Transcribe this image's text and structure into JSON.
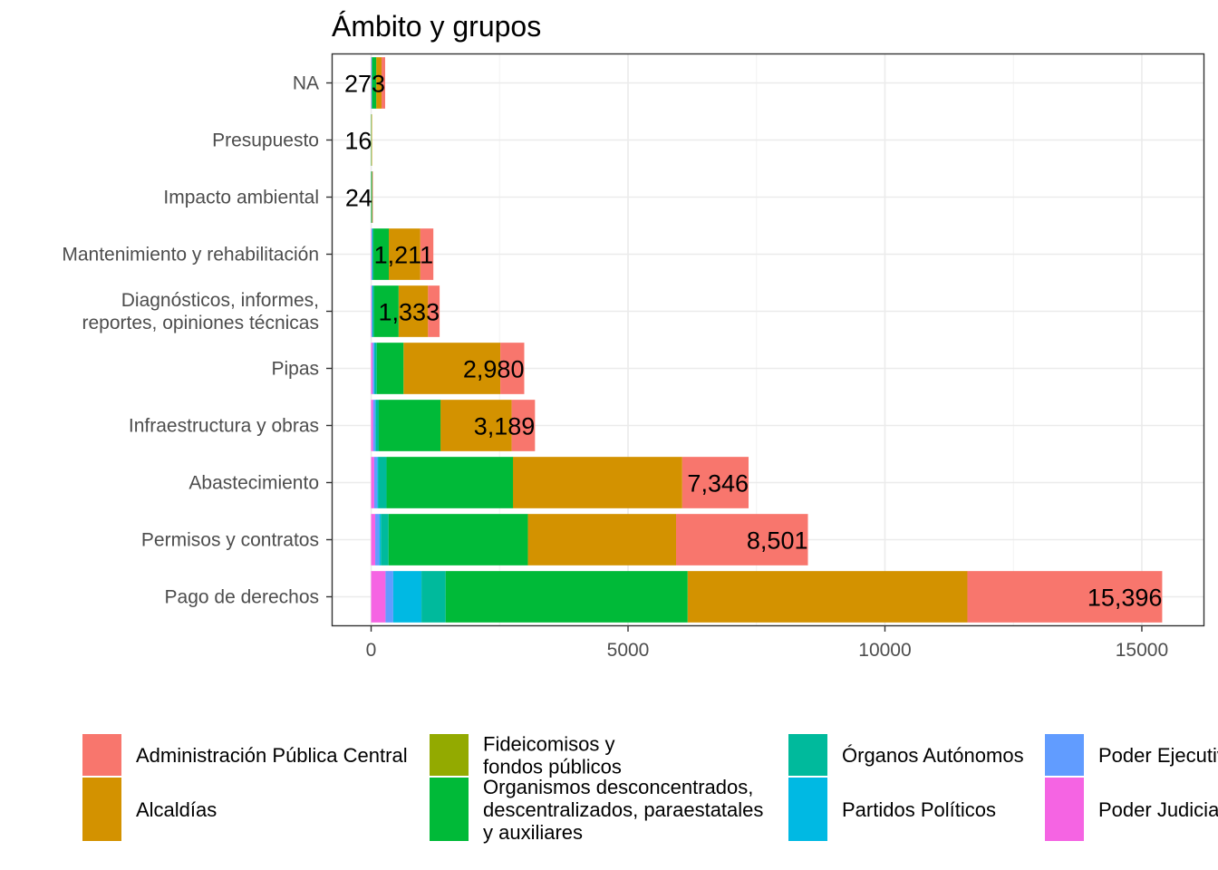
{
  "chart_data": {
    "type": "bar",
    "orientation": "horizontal",
    "stacked": true,
    "title": "Ámbito y grupos",
    "xlabel": "",
    "ylabel": "",
    "xlim": [
      -750,
      16200
    ],
    "xticks": [
      0,
      5000,
      10000,
      15000
    ],
    "grid": true,
    "legend_position": "bottom",
    "categories": [
      "Pago de derechos",
      "Permisos y contratos",
      "Abastecimiento",
      "Infraestructura y obras",
      "Pipas",
      "Diagnósticos, informes,\nreportes, opiniones técnicas",
      "Mantenimiento y rehabilitación",
      "Impacto ambiental",
      "Presupuesto",
      "NA"
    ],
    "totals": [
      15396,
      8501,
      7346,
      3189,
      2980,
      1333,
      1211,
      24,
      16,
      273
    ],
    "total_labels": [
      "15,396",
      "8,501",
      "7,346",
      "3,189",
      "2,980",
      "1,333",
      "1,211",
      "24",
      "16",
      "273"
    ],
    "series": [
      {
        "name": "Poder Judicial",
        "color": "#F564E3",
        "values": [
          280,
          80,
          60,
          40,
          30,
          10,
          10,
          0,
          0,
          5
        ]
      },
      {
        "name": "Poder Ejecutivo",
        "color": "#619CFF",
        "values": [
          150,
          80,
          60,
          40,
          30,
          15,
          10,
          0,
          0,
          5
        ]
      },
      {
        "name": "Partidos Políticos",
        "color": "#00B9E3",
        "values": [
          550,
          30,
          20,
          10,
          10,
          5,
          5,
          0,
          0,
          0
        ]
      },
      {
        "name": "Órganos Autónomos",
        "color": "#00BA9C",
        "values": [
          470,
          150,
          160,
          60,
          40,
          25,
          20,
          2,
          1,
          10
        ]
      },
      {
        "name": "Organismos desconcentrados, descentralizados, paraestatales y auxiliares",
        "color": "#00BA38",
        "values": [
          4710,
          2710,
          2460,
          1200,
          520,
          480,
          300,
          18,
          5,
          80
        ]
      },
      {
        "name": "Fideicomisos y fondos públicos",
        "color": "#93AA00",
        "values": [
          5,
          5,
          5,
          5,
          5,
          3,
          3,
          0,
          0,
          3
        ]
      },
      {
        "name": "Alcaldías",
        "color": "#D39200",
        "values": [
          5440,
          2880,
          3290,
          1380,
          1880,
          570,
          610,
          2,
          10,
          100
        ]
      },
      {
        "name": "Administración Pública Central",
        "color": "#F8766D",
        "values": [
          3791,
          2566,
          1291,
          454,
          465,
          225,
          253,
          2,
          0,
          70
        ]
      }
    ]
  },
  "legend": {
    "items": [
      {
        "label": "Administración Pública Central",
        "color": "#F8766D"
      },
      {
        "label": "Alcaldías",
        "color": "#D39200"
      },
      {
        "label": "Fideicomisos y\nfondos públicos",
        "color": "#93AA00"
      },
      {
        "label": "Organismos desconcentrados,\ndescentralizados, paraestatales\ny auxiliares",
        "color": "#00BA38"
      },
      {
        "label": "Órganos Autónomos",
        "color": "#00BA9C"
      },
      {
        "label": "Partidos Políticos",
        "color": "#00B9E3"
      },
      {
        "label": "Poder Ejecutivo",
        "color": "#619CFF"
      },
      {
        "label": "Poder Judicial",
        "color": "#F564E3"
      }
    ]
  }
}
